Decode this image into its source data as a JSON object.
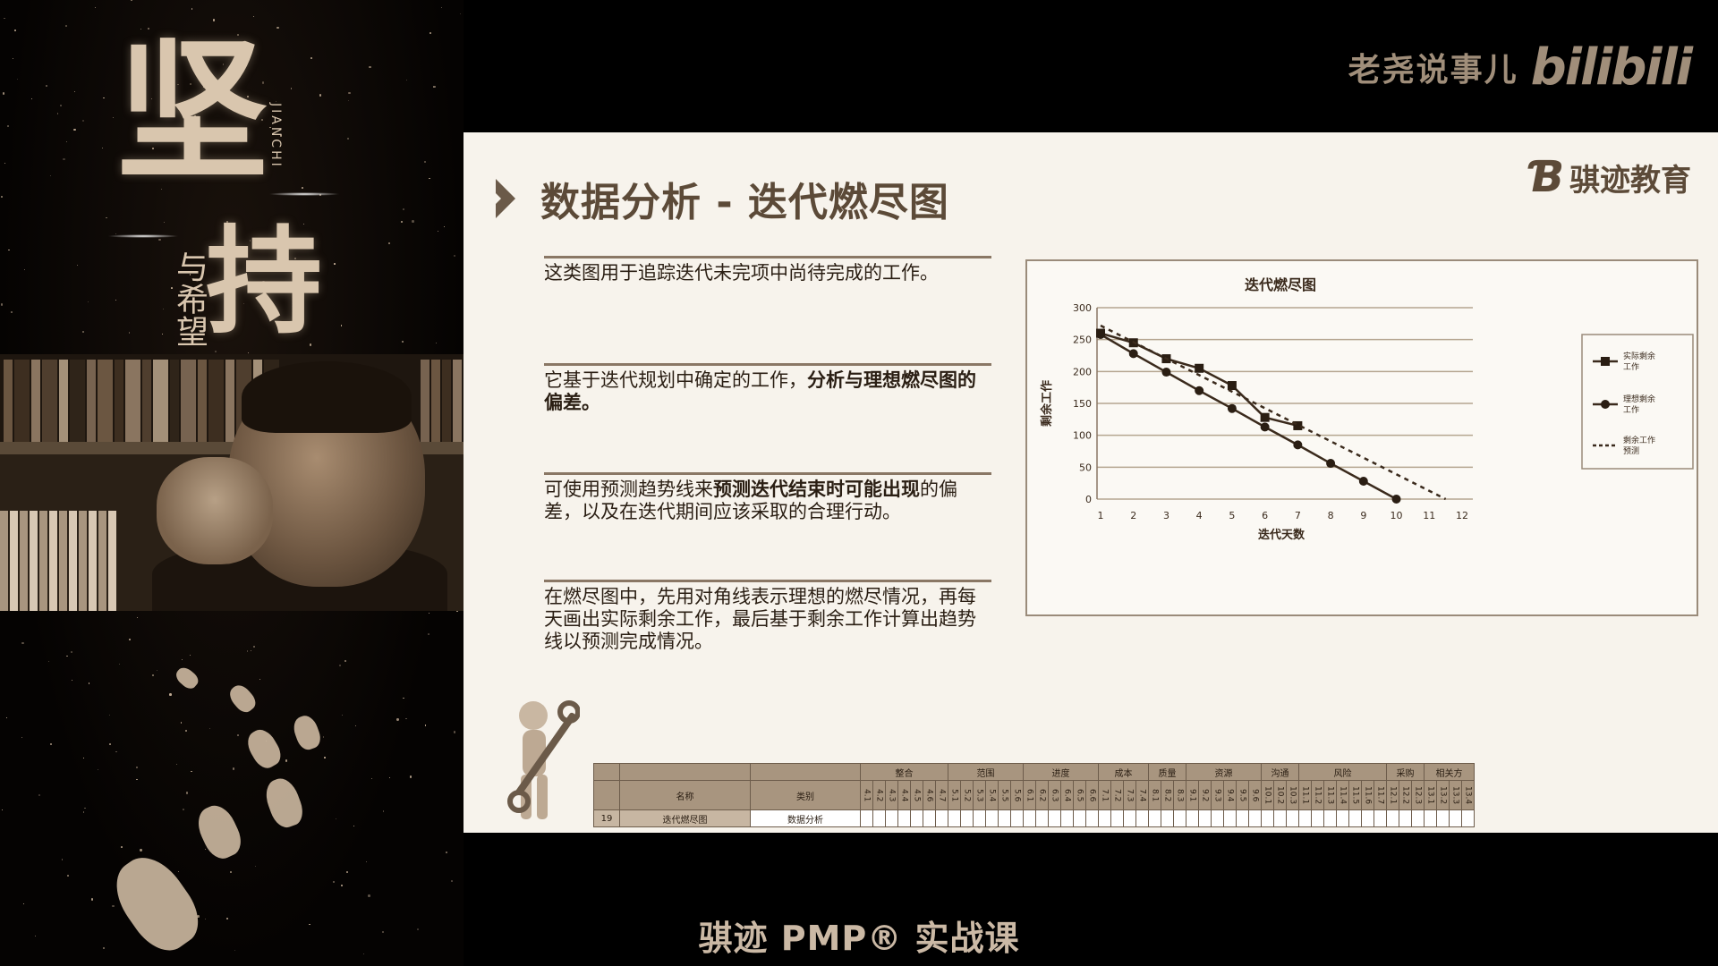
{
  "brand": {
    "name": "老尧说事儿",
    "logo": "bilibili"
  },
  "poster": {
    "char1": "坚",
    "char2": "持",
    "sub": "与希望",
    "pinyin": "JIANCHI"
  },
  "slide": {
    "title": "数据分析 - 迭代燃尽图",
    "org_logo_mark": "Ɓ",
    "org_name": "骐迹教育",
    "paragraphs": [
      {
        "pre": "这类图用于追踪迭代未完项中尚待完成的工作。",
        "bold": "",
        "post": ""
      },
      {
        "pre": "它基于迭代规划中确定的工作，",
        "bold": "分析与理想燃尽图的偏差。",
        "post": ""
      },
      {
        "pre": "可使用预测趋势线来",
        "bold": "预测迭代结束时可能出现",
        "post": "的偏差，以及在迭代期间应该采取的合理行动。"
      },
      {
        "pre": "在燃尽图中，先用对角线表示理想的燃尽情况，再每天画出实际剩余工作，最后基于剩余工作计算出趋势线以预测完成情况。",
        "bold": "",
        "post": ""
      }
    ]
  },
  "chart_data": {
    "type": "line",
    "title": "迭代燃尽图",
    "xlabel": "迭代天数",
    "ylabel": "剩余工作",
    "x": [
      1,
      2,
      3,
      4,
      5,
      6,
      7,
      8,
      9,
      10,
      11,
      12
    ],
    "xlim": [
      1,
      12
    ],
    "ylim": [
      0,
      300
    ],
    "yticks": [
      0,
      50,
      100,
      150,
      200,
      250,
      300
    ],
    "grid": true,
    "legend_position": "right",
    "series": [
      {
        "name": "实际剩余工作",
        "marker": "square",
        "style": "solid",
        "x": [
          1,
          2,
          3,
          4,
          5,
          6,
          7
        ],
        "values": [
          260,
          245,
          220,
          205,
          178,
          128,
          115
        ]
      },
      {
        "name": "理想剩余工作",
        "marker": "circle",
        "style": "solid",
        "x": [
          1,
          2,
          3,
          4,
          5,
          6,
          7,
          8,
          9,
          10
        ],
        "values": [
          258,
          228,
          199,
          170,
          142,
          113,
          85,
          56,
          28,
          0
        ]
      },
      {
        "name": "剩余工作预测",
        "marker": "none",
        "style": "dashed",
        "x": [
          1,
          11.5
        ],
        "values": [
          272,
          0
        ]
      }
    ]
  },
  "matrix": {
    "groups": [
      "整合",
      "范围",
      "进度",
      "成本",
      "质量",
      "资源",
      "沟通",
      "风险",
      "采购",
      "相关方"
    ],
    "group_codes": [
      [
        "4.1",
        "4.2",
        "4.3",
        "4.4",
        "4.5",
        "4.6",
        "4.7"
      ],
      [
        "5.1",
        "5.2",
        "5.3",
        "5.4",
        "5.5",
        "5.6"
      ],
      [
        "6.1",
        "6.2",
        "6.3",
        "6.4",
        "6.5",
        "6.6"
      ],
      [
        "7.1",
        "7.2",
        "7.3",
        "7.4"
      ],
      [
        "8.1",
        "8.2",
        "8.3"
      ],
      [
        "9.1",
        "9.2",
        "9.3",
        "9.4",
        "9.5",
        "9.6"
      ],
      [
        "10.1",
        "10.2",
        "10.3"
      ],
      [
        "11.1",
        "11.2",
        "11.3",
        "11.4",
        "11.5",
        "11.6",
        "11.7"
      ],
      [
        "12.1",
        "12.2",
        "12.3"
      ],
      [
        "13.1",
        "13.2",
        "13.3",
        "13.4"
      ]
    ],
    "col_name": "名称",
    "col_type": "类别",
    "row_num": "19",
    "row_name": "迭代燃尽图",
    "row_type": "数据分析"
  },
  "footer": "骐迹 PMP® 实战课"
}
